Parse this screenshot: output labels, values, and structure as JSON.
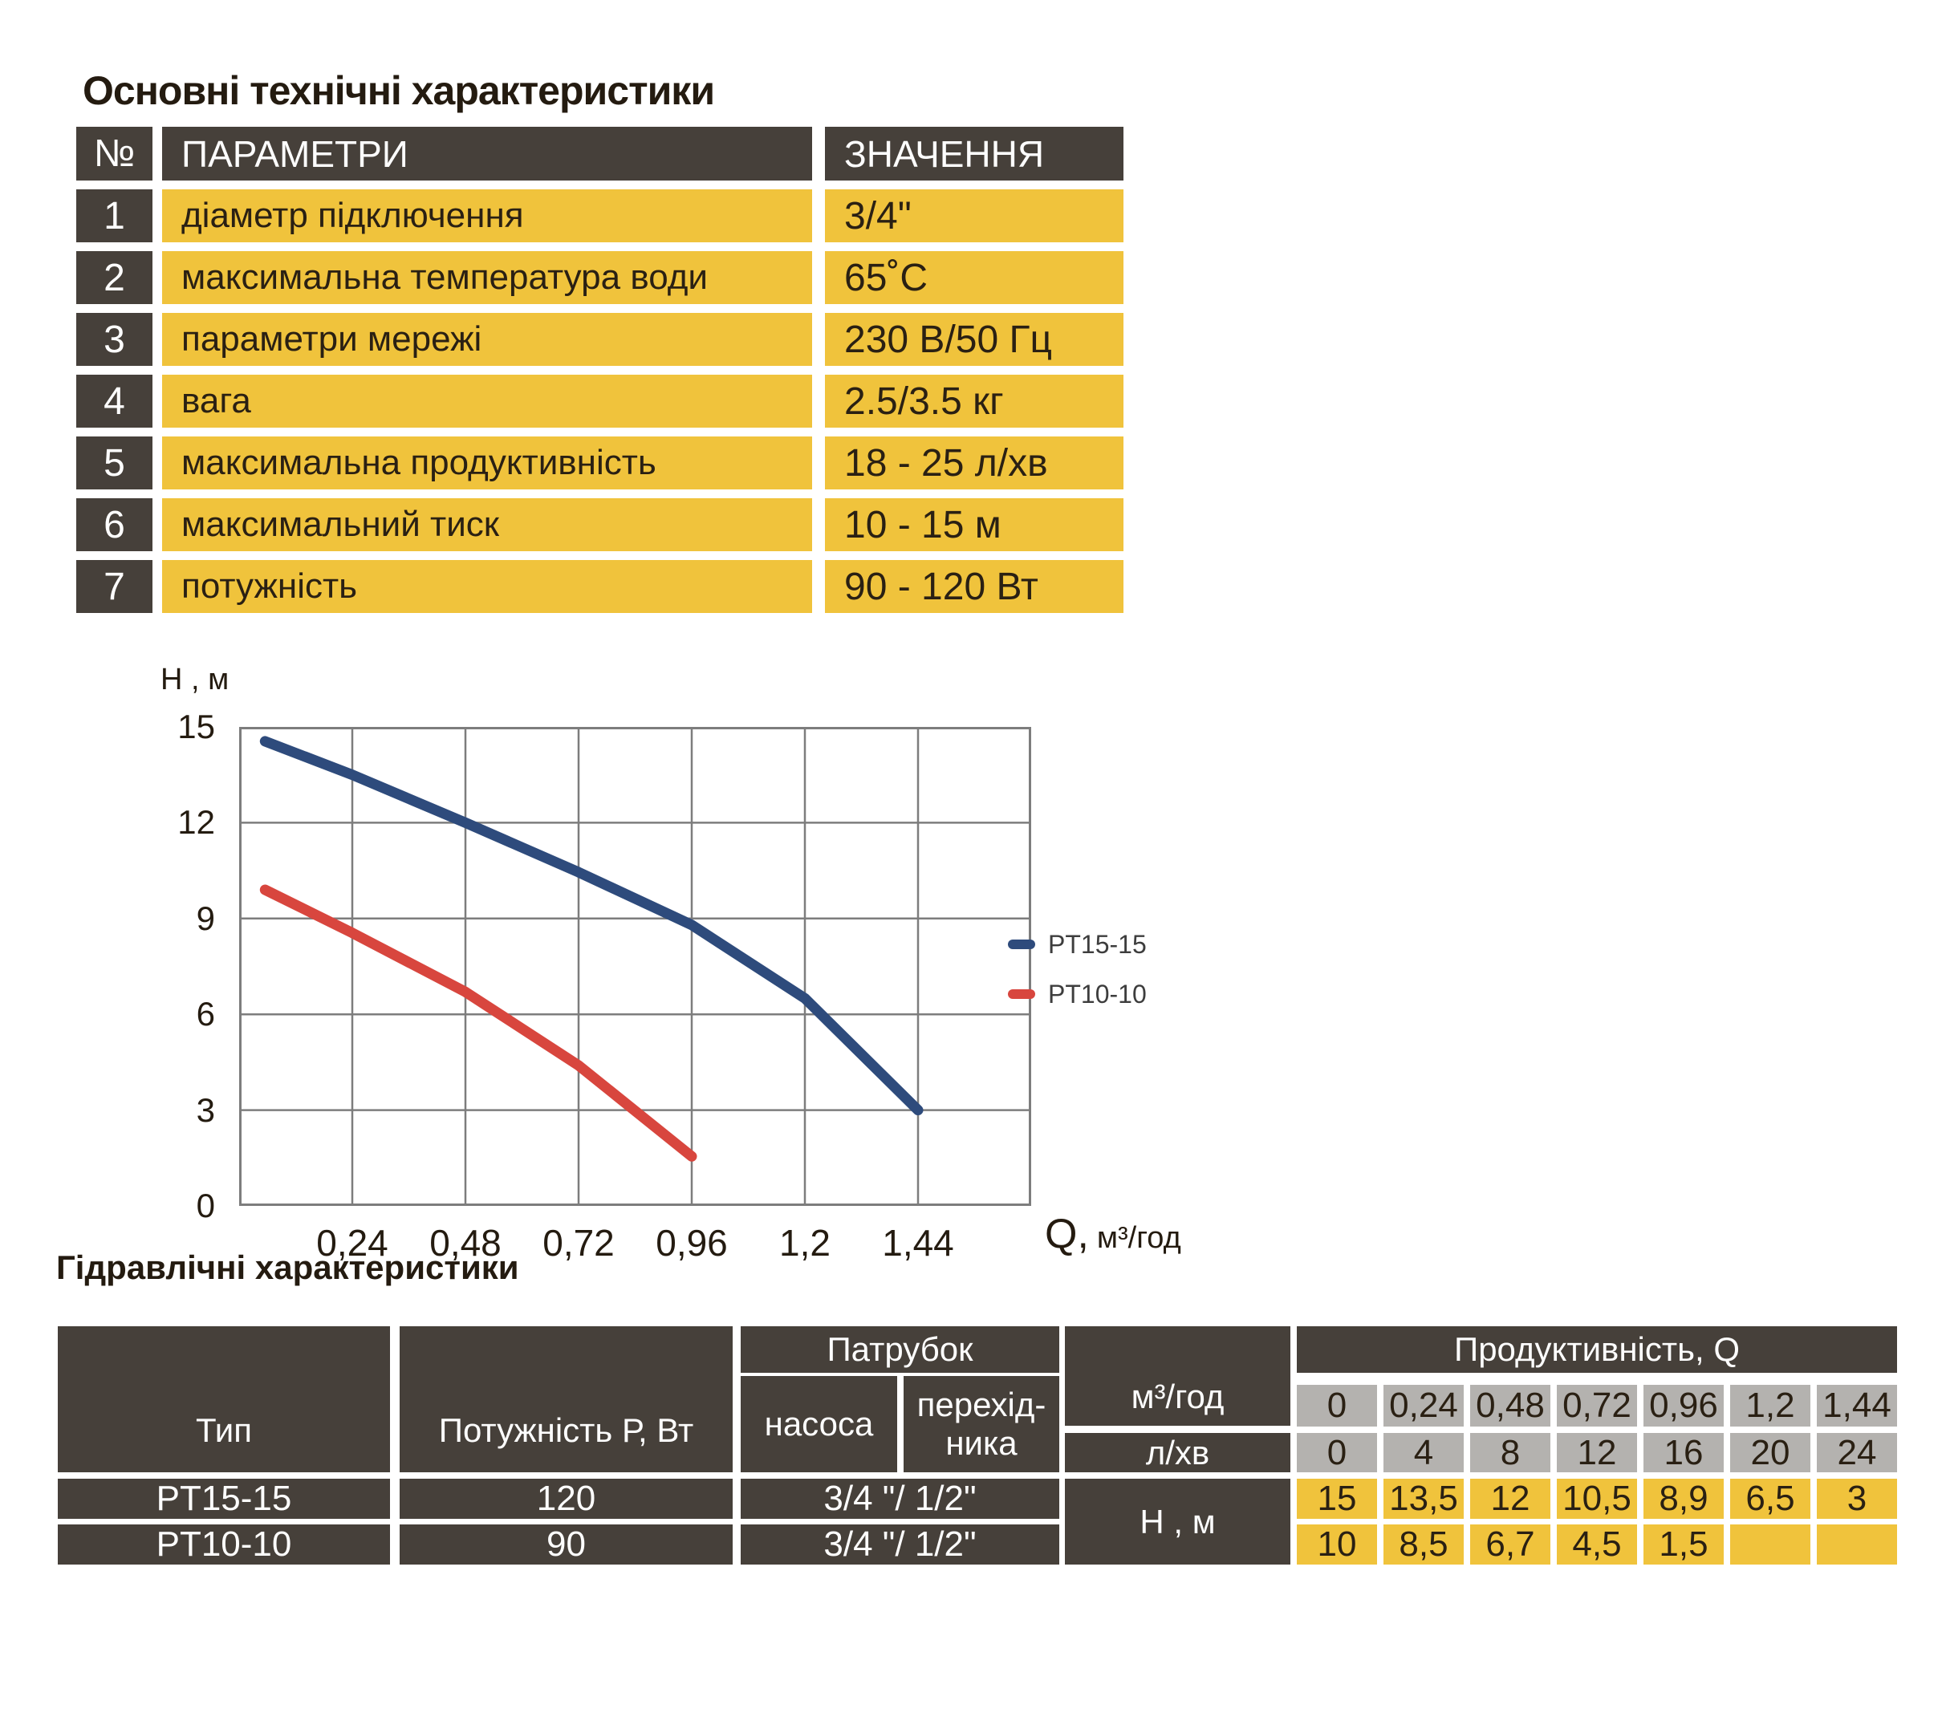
{
  "page": {
    "title": "Основні технічні характеристики",
    "section2_title": "Гідравлічні характеристики"
  },
  "colors": {
    "dark_cell": "#46403a",
    "yellow_cell": "#f0c33c",
    "gray_cell": "#b4b2af",
    "grid": "#7d7d7d",
    "series_blue": "#2e4b7c",
    "series_red": "#d8463e",
    "text_dark": "#2a2013"
  },
  "spec_table": {
    "headers": {
      "num": "№",
      "param": "ПАРАМЕТРИ",
      "value": "ЗНАЧЕННЯ"
    },
    "rows": [
      {
        "num": "1",
        "param": "діаметр підключення",
        "value": "3/4\""
      },
      {
        "num": "2",
        "param": "максимальна температура води",
        "value": "65˚С"
      },
      {
        "num": "3",
        "param": "параметри мережі",
        "value": "230 В/50 Гц"
      },
      {
        "num": "4",
        "param": "вага",
        "value": "2.5/3.5 кг"
      },
      {
        "num": "5",
        "param": "максимальна продуктивність",
        "value": "18 - 25 л/хв"
      },
      {
        "num": "6",
        "param": "максимальний тиск",
        "value": "10 - 15 м"
      },
      {
        "num": "7",
        "param": "потужність",
        "value": "90 - 120 Вт"
      }
    ]
  },
  "chart_data": {
    "type": "line",
    "y_label": "Н , м",
    "x_label_q": "Q,",
    "x_label_unit": "м³/год",
    "x_range": [
      0,
      1.68
    ],
    "y_range": [
      0,
      15
    ],
    "x_grid_step": 0.24,
    "y_grid_step": 3,
    "grid": true,
    "legend_position": "right",
    "x_ticks": [
      "0,24",
      "0,48",
      "0,72",
      "0,96",
      "1,2",
      "1,44"
    ],
    "x_tick_values": [
      0.24,
      0.48,
      0.72,
      0.96,
      1.2,
      1.44
    ],
    "y_ticks": [
      "15",
      "12",
      "9",
      "6",
      "3",
      "0"
    ],
    "y_tick_values": [
      15,
      12,
      9,
      6,
      3,
      0
    ],
    "series": [
      {
        "name": "PT15-15",
        "color": "#2e4b7c",
        "points": [
          [
            0.055,
            14.55
          ],
          [
            0.24,
            13.5
          ],
          [
            0.48,
            12
          ],
          [
            0.72,
            10.45
          ],
          [
            0.96,
            8.8
          ],
          [
            1.2,
            6.5
          ],
          [
            1.44,
            3
          ]
        ]
      },
      {
        "name": "PT10-10",
        "color": "#d8463e",
        "points": [
          [
            0.055,
            9.9
          ],
          [
            0.24,
            8.55
          ],
          [
            0.48,
            6.7
          ],
          [
            0.72,
            4.4
          ],
          [
            0.96,
            1.55
          ]
        ]
      }
    ]
  },
  "hydraulic_table": {
    "col_type": "Тип",
    "col_power": "Потужність Р, Вт",
    "col_patrubok": "Патрубок",
    "col_nasosa": "насоса",
    "col_perehidnyka": "перехід-\nника",
    "col_productivity": "Продуктивність, Q",
    "unit_m3h": "м³/год",
    "unit_lmin": "л/хв",
    "unit_h": "Н , м",
    "q_m3h": [
      "0",
      "0,24",
      "0,48",
      "0,72",
      "0,96",
      "1,2",
      "1,44"
    ],
    "q_lmin": [
      "0",
      "4",
      "8",
      "12",
      "16",
      "20",
      "24"
    ],
    "rows": [
      {
        "type": "PT15-15",
        "power": "120",
        "patrubok": "3/4 \"/ 1/2\"",
        "h": [
          "15",
          "13,5",
          "12",
          "10,5",
          "8,9",
          "6,5",
          "3"
        ]
      },
      {
        "type": "PT10-10",
        "power": "90",
        "patrubok": "3/4 \"/ 1/2\"",
        "h": [
          "10",
          "8,5",
          "6,7",
          "4,5",
          "1,5",
          "",
          ""
        ]
      }
    ]
  }
}
